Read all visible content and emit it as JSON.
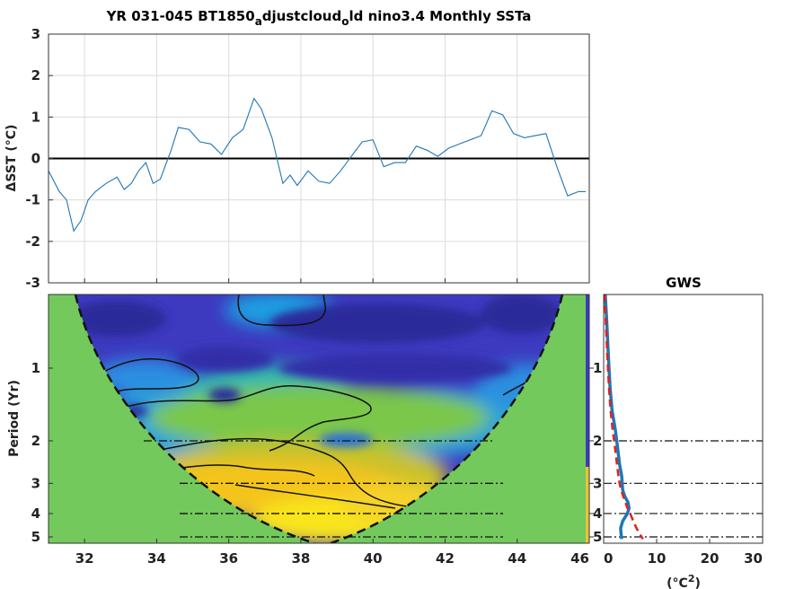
{
  "title": {
    "main": "YR 031-045 BT1850",
    "sub1": "a",
    "mid": "djustcloud",
    "sub2": "o",
    "end": "ld nino3.4 Monthly SSTa"
  },
  "chart_data": [
    {
      "type": "line",
      "ylabel": "ΔSST (°C)",
      "xlim": [
        31,
        46
      ],
      "ylim": [
        -3,
        3
      ],
      "xticks": [
        "32",
        "34",
        "36",
        "38",
        "40",
        "42",
        "44"
      ],
      "yticks": [
        "-3",
        "-2",
        "-1",
        "0",
        "1",
        "2",
        "3"
      ],
      "grid": true,
      "color": "#1f77b4",
      "x": [
        31.0,
        31.3,
        31.5,
        31.7,
        31.9,
        32.1,
        32.3,
        32.6,
        32.9,
        33.1,
        33.3,
        33.5,
        33.7,
        33.9,
        34.1,
        34.4,
        34.6,
        34.9,
        35.2,
        35.5,
        35.8,
        36.1,
        36.4,
        36.7,
        36.9,
        37.2,
        37.5,
        37.7,
        37.9,
        38.2,
        38.5,
        38.8,
        39.1,
        39.4,
        39.7,
        40.0,
        40.3,
        40.6,
        40.9,
        41.2,
        41.5,
        41.8,
        42.1,
        42.4,
        42.7,
        43.0,
        43.3,
        43.6,
        43.9,
        44.2,
        44.5,
        44.8,
        45.1,
        45.4,
        45.7,
        45.9
      ],
      "values": [
        -0.3,
        -0.8,
        -1.0,
        -1.75,
        -1.5,
        -1.0,
        -0.8,
        -0.6,
        -0.45,
        -0.75,
        -0.6,
        -0.3,
        -0.1,
        -0.6,
        -0.5,
        0.2,
        0.75,
        0.7,
        0.4,
        0.35,
        0.1,
        0.5,
        0.7,
        1.45,
        1.2,
        0.5,
        -0.6,
        -0.4,
        -0.65,
        -0.3,
        -0.55,
        -0.6,
        -0.3,
        0.05,
        0.4,
        0.45,
        -0.2,
        -0.1,
        -0.1,
        0.3,
        0.2,
        0.05,
        0.25,
        0.35,
        0.45,
        0.55,
        1.15,
        1.05,
        0.6,
        0.5,
        0.55,
        0.6,
        -0.2,
        -0.9,
        -0.8,
        -0.8
      ],
      "zero_line": 0
    },
    {
      "type": "heatmap",
      "ylabel": "Period (Yr)",
      "xlim": [
        31,
        46
      ],
      "xticks": [
        "32",
        "34",
        "36",
        "38",
        "40",
        "42",
        "44",
        "46"
      ],
      "yticks": [
        "1",
        "2",
        "3",
        "4",
        "5"
      ],
      "y_scale": "log2",
      "reference_periods": [
        2,
        3,
        4,
        5
      ],
      "colormap": "parula",
      "cone_of_influence_color": "#73c95c"
    },
    {
      "type": "line",
      "title": "GWS",
      "xlabel": "(°C²)",
      "xlabel_base": "(°C",
      "xlabel_sup": "2",
      "xlabel_end": ")",
      "xlim": [
        0,
        30
      ],
      "xticks": [
        "0",
        "10",
        "20",
        "30"
      ],
      "yticks": [
        "1",
        "2",
        "3",
        "4",
        "5"
      ],
      "reference_periods": [
        2,
        3,
        4,
        5
      ],
      "series": [
        {
          "color": "#1f77b4",
          "style": "solid",
          "period": [
            0.35,
            0.6,
            0.9,
            1.2,
            1.5,
            1.8,
            2.1,
            2.5,
            2.8,
            3.0,
            3.2,
            3.4,
            3.6,
            3.8,
            4.0,
            4.3,
            4.6,
            4.9,
            5.1
          ],
          "values": [
            0.3,
            0.6,
            0.9,
            1.2,
            1.6,
            2.2,
            2.6,
            3.0,
            3.4,
            3.5,
            3.6,
            4.0,
            4.6,
            4.8,
            4.5,
            3.6,
            3.2,
            3.3,
            3.4
          ]
        },
        {
          "color": "#dd2222",
          "style": "dashed",
          "period": [
            0.35,
            0.6,
            0.9,
            1.2,
            1.5,
            1.8,
            2.1,
            2.5,
            2.8,
            3.0,
            3.2,
            3.4,
            3.6,
            3.8,
            4.0,
            4.3,
            4.6,
            4.9,
            5.1
          ],
          "values": [
            0.2,
            0.4,
            0.7,
            1.0,
            1.3,
            1.7,
            2.1,
            2.5,
            2.8,
            3.0,
            3.3,
            3.7,
            4.1,
            4.5,
            5.0,
            5.6,
            6.2,
            6.9,
            7.4
          ]
        }
      ]
    }
  ]
}
